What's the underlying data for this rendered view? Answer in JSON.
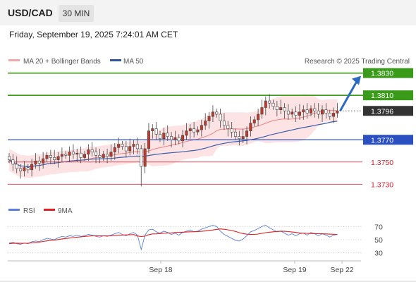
{
  "header": {
    "pair": "USD/CAD",
    "timeframe": "30 MIN",
    "datetime": "Friday, September 19, 2025 7:24:01 AM CET"
  },
  "legend": {
    "ma20": "MA 20 + Bollinger Bands",
    "ma50": "MA 50",
    "credit": "Research © 2025 Trading Central"
  },
  "rsi_legend": {
    "rsi": "RSI",
    "ma9": "9MA"
  },
  "colors": {
    "ma20": "#f08080",
    "ma50": "#3b5fa8",
    "up_candle": "#c0392b",
    "target_green": "#3a9a1a",
    "pivot_blue": "#2a4fc0",
    "support_red": "#e05060",
    "current_price_bg": "#333333",
    "arrow": "#2a6ac0",
    "rsi_line": "#5b7fd9",
    "rsi_ma": "#e02020"
  },
  "chart_data": [
    {
      "type": "candlestick",
      "title": "",
      "x_labels": [
        "Sep 18",
        "Sep 19",
        "Sep 22"
      ],
      "ylim": [
        1.3715,
        1.3845
      ],
      "levels": [
        {
          "value": 1.383,
          "label": "1.3830",
          "kind": "target",
          "color": "#3a9a1a"
        },
        {
          "value": 1.381,
          "label": "1.3810",
          "kind": "target",
          "color": "#3a9a1a"
        },
        {
          "value": 1.3796,
          "label": "1.3796",
          "kind": "current",
          "color": "#333333"
        },
        {
          "value": 1.377,
          "label": "1.3770",
          "kind": "pivot",
          "color": "#2a4fc0"
        },
        {
          "value": 1.375,
          "label": "1.3750",
          "kind": "support",
          "color": "#e05060"
        },
        {
          "value": 1.373,
          "label": "1.3730",
          "kind": "support",
          "color": "#e05060"
        }
      ],
      "closes": [
        1.3752,
        1.3748,
        1.3744,
        1.3742,
        1.3745,
        1.3743,
        1.3748,
        1.3751,
        1.3749,
        1.3753,
        1.3756,
        1.3754,
        1.3752,
        1.3755,
        1.3757,
        1.3756,
        1.3759,
        1.3757,
        1.3758,
        1.3754,
        1.3757,
        1.3761,
        1.3759,
        1.3756,
        1.3754,
        1.3757,
        1.3755,
        1.3759,
        1.3763,
        1.3766,
        1.3764,
        1.376,
        1.3764,
        1.3766,
        1.3762,
        1.3746,
        1.3762,
        1.3778,
        1.378,
        1.3775,
        1.3771,
        1.3776,
        1.3773,
        1.377,
        1.3772,
        1.3769,
        1.3774,
        1.3778,
        1.378,
        1.3777,
        1.3779,
        1.3783,
        1.3787,
        1.3791,
        1.3795,
        1.3793,
        1.3787,
        1.3783,
        1.378,
        1.3777,
        1.3773,
        1.3771,
        1.3773,
        1.3778,
        1.3785,
        1.3788,
        1.3793,
        1.3799,
        1.3805,
        1.3803,
        1.38,
        1.3797,
        1.3799,
        1.3796,
        1.3793,
        1.3795,
        1.3792,
        1.3795,
        1.3797,
        1.3794,
        1.3798,
        1.3796,
        1.3793,
        1.3797,
        1.3794,
        1.3791,
        1.3794,
        1.3796
      ]
    },
    {
      "type": "line",
      "title": "",
      "ylim": [
        20,
        80
      ],
      "y_ticks": [
        70,
        50,
        30
      ],
      "series": [
        {
          "name": "RSI",
          "values": [
            45,
            46,
            44,
            43,
            45,
            44,
            47,
            48,
            47,
            50,
            52,
            51,
            50,
            53,
            55,
            54,
            56,
            55,
            57,
            55,
            56,
            58,
            57,
            55,
            54,
            56,
            55,
            57,
            59,
            61,
            58,
            56,
            59,
            61,
            57,
            35,
            57,
            65,
            66,
            62,
            60,
            63,
            61,
            58,
            60,
            57,
            61,
            63,
            65,
            62,
            63,
            66,
            68,
            70,
            72,
            70,
            63,
            58,
            55,
            52,
            49,
            48,
            51,
            56,
            62,
            64,
            67,
            70,
            72,
            68,
            65,
            62,
            63,
            60,
            57,
            59,
            56,
            59,
            60,
            57,
            61,
            59,
            56,
            59,
            57,
            54,
            57,
            58
          ]
        },
        {
          "name": "9MA",
          "values": [
            44,
            44.5,
            44.8,
            44.5,
            44.6,
            44.8,
            45.2,
            45.8,
            46.3,
            47.3,
            48.2,
            48.9,
            49.4,
            50.2,
            51.2,
            51.8,
            52.5,
            53.2,
            53.9,
            54.3,
            55,
            55.4,
            55.9,
            56,
            55.9,
            55.9,
            55.8,
            55.9,
            56.3,
            56.8,
            57.1,
            57.3,
            57.5,
            57.8,
            55.6,
            54.8,
            55.4,
            57.6,
            58.8,
            58.9,
            59.3,
            59.9,
            60.3,
            60.4,
            60.9,
            61.1,
            61.4,
            61.7,
            62,
            62.1,
            62.4,
            62.7,
            63.3,
            64.1,
            64.8,
            65.6,
            66.4,
            65.9,
            65,
            63.9,
            62.5,
            60.7,
            59.3,
            58.4,
            58.1,
            58,
            58.6,
            59.8,
            60.7,
            61.4,
            62,
            62.5,
            63,
            62.8,
            62.3,
            61.7,
            61,
            60.3,
            60,
            59.6,
            59.4,
            59.2,
            59.1,
            59,
            58.8,
            58.5,
            58.2,
            58
          ]
        }
      ]
    }
  ]
}
